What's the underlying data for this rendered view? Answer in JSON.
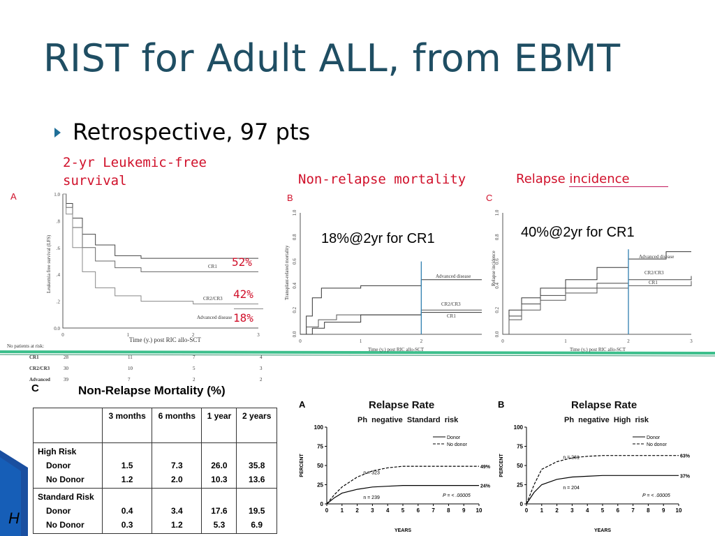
{
  "slide": {
    "title": "RIST for Adult ALL, from EBMT",
    "bullet": "Retrospective, 97 pts",
    "green_band_color": "#3dbf8c",
    "accent_blue": "#1f4e63",
    "label_red": "#d0102a"
  },
  "panel_lfs": {
    "header_line1": "2-yr Leukemic-free",
    "header_line2": "survival",
    "letter": "A",
    "ylabel": "Leukemia free survival (LFS)",
    "xlabel": "Time (y.) post RIC allo-SCT",
    "pct_cr1": "52%",
    "pct_cr2": "42%",
    "pct_adv": "18%",
    "series_labels": [
      "CR1",
      "CR2/CR3",
      "Advanced disease"
    ],
    "risk_header": "No patients at risk:",
    "risk_rows": [
      {
        "label": "CR1",
        "values": [
          "28",
          "11",
          "7",
          "4"
        ]
      },
      {
        "label": "CR2/CR3",
        "values": [
          "30",
          "10",
          "5",
          "3"
        ]
      },
      {
        "label": "Advanced",
        "values": [
          "39",
          "7",
          "2",
          "2"
        ]
      }
    ]
  },
  "panel_nrm": {
    "header": "Non-relapse mortality",
    "letter": "B",
    "annotation": "18%@2yr for CR1",
    "ylabel": "Transplant-related mortality",
    "xlabel": "Time (y.) post RIC allo-SCT",
    "series_labels": [
      "Advanced disease",
      "CR2/CR3",
      "CR1"
    ]
  },
  "panel_relapse": {
    "header_a": "Relapse",
    "header_b": "incidence",
    "letter": "C",
    "annotation": "40%@2yr for CR1",
    "ylabel": "Relapse incidence",
    "xlabel": "Time (y.) post RIC allo-SCT",
    "series_labels": [
      "Advanced disease",
      "CR2/CR3",
      "CR1"
    ]
  },
  "nrm_table": {
    "letter": "C",
    "title": "Non-Relapse Mortality (%)",
    "columns": [
      "3 months",
      "6 months",
      "1 year",
      "2 years"
    ],
    "groups": [
      {
        "name": "High Risk",
        "rows": [
          {
            "label": "Donor",
            "values": [
              "1.5",
              "7.3",
              "26.0",
              "35.8"
            ]
          },
          {
            "label": "No Donor",
            "values": [
              "1.2",
              "2.0",
              "10.3",
              "13.6"
            ]
          }
        ]
      },
      {
        "name": "Standard Risk",
        "rows": [
          {
            "label": "Donor",
            "values": [
              "0.4",
              "3.4",
              "17.6",
              "19.5"
            ]
          },
          {
            "label": "No Donor",
            "values": [
              "0.3",
              "1.2",
              "5.3",
              "6.9"
            ]
          }
        ]
      }
    ]
  },
  "relapse_a": {
    "letter": "A",
    "title": "Relapse Rate",
    "subtitle": "Ph  negative  Standard  risk",
    "legend_donor": "Donor",
    "legend_nodonor": "No donor",
    "ylabel": "PERCENT",
    "xlabel": "YEARS",
    "n_nodonor": "n = 323",
    "n_donor": "n = 239",
    "end_nodonor": "49%",
    "end_donor": "24%",
    "pvalue": "P = < .00005"
  },
  "relapse_b": {
    "letter": "B",
    "title": "Relapse Rate",
    "subtitle": "Ph  negative  High  risk",
    "legend_donor": "Donor",
    "legend_nodonor": "No donor",
    "ylabel": "PERCENT",
    "xlabel": "YEARS",
    "n_nodonor": "n = 261",
    "n_donor": "n = 204",
    "end_nodonor": "63%",
    "end_donor": "37%",
    "pvalue": "P = < .00005"
  },
  "footer_fragment": "H",
  "chart_data": [
    {
      "type": "line",
      "title": "",
      "xlabel": "Time (y.) post RIC allo-SCT",
      "ylabel": "Leukemia free survival (LFS)",
      "xlim": [
        0,
        3
      ],
      "ylim": [
        0,
        1
      ],
      "x_ticks": [
        "0",
        "1",
        "2",
        "3"
      ],
      "y_ticks": [
        "0.0",
        ".2",
        ".4",
        ".6",
        ".8",
        "1.0"
      ],
      "series": [
        {
          "name": "CR1",
          "x": [
            0,
            0.05,
            0.15,
            0.3,
            0.5,
            0.8,
            1.2,
            2.0,
            3.0
          ],
          "y": [
            1,
            0.93,
            0.82,
            0.7,
            0.62,
            0.54,
            0.52,
            0.52,
            0.52
          ]
        },
        {
          "name": "CR2/CR3",
          "x": [
            0,
            0.05,
            0.15,
            0.3,
            0.5,
            0.8,
            1.2,
            2.0,
            3.0
          ],
          "y": [
            1,
            0.9,
            0.75,
            0.6,
            0.5,
            0.45,
            0.42,
            0.42,
            0.42
          ]
        },
        {
          "name": "Advanced disease",
          "x": [
            0,
            0.05,
            0.15,
            0.3,
            0.5,
            0.8,
            1.2,
            2.0,
            3.0
          ],
          "y": [
            1,
            0.85,
            0.6,
            0.42,
            0.3,
            0.24,
            0.2,
            0.18,
            0.18
          ]
        }
      ]
    },
    {
      "type": "line",
      "title": "",
      "xlabel": "Time (y.) post RIC allo-SCT",
      "ylabel": "Transplant-related mortality",
      "xlim": [
        0,
        3
      ],
      "ylim": [
        0,
        1
      ],
      "x_ticks": [
        "0",
        "1",
        "2"
      ],
      "y_ticks": [
        "0.0",
        "0.2",
        "0.4",
        "0.6",
        "0.8",
        "1.0"
      ],
      "series": [
        {
          "name": "Advanced disease",
          "x": [
            0,
            0.1,
            0.2,
            0.35,
            1.0,
            1.9,
            2.0,
            3.0
          ],
          "y": [
            0,
            0.15,
            0.3,
            0.38,
            0.4,
            0.4,
            0.45,
            0.45
          ]
        },
        {
          "name": "CR2/CR3",
          "x": [
            0,
            0.1,
            0.3,
            0.6,
            2.0,
            3.0
          ],
          "y": [
            0,
            0.06,
            0.12,
            0.16,
            0.2,
            0.2
          ]
        },
        {
          "name": "CR1",
          "x": [
            0,
            0.2,
            0.4,
            1.0,
            2.0,
            3.0
          ],
          "y": [
            0,
            0.05,
            0.1,
            0.16,
            0.18,
            0.18
          ]
        }
      ]
    },
    {
      "type": "line",
      "title": "",
      "xlabel": "Time (y.) post RIC allo-SCT",
      "ylabel": "Relapse incidence",
      "xlim": [
        0,
        3
      ],
      "ylim": [
        0,
        1
      ],
      "x_ticks": [
        "0",
        "1",
        "2",
        "3"
      ],
      "y_ticks": [
        "0.0",
        "0.2",
        "0.4",
        "0.6",
        "0.8",
        "1.0"
      ],
      "series": [
        {
          "name": "Advanced disease",
          "x": [
            0,
            0.1,
            0.3,
            0.6,
            1.0,
            1.5,
            2.0,
            2.6,
            3.0
          ],
          "y": [
            0,
            0.2,
            0.3,
            0.38,
            0.45,
            0.55,
            0.62,
            0.68,
            0.68
          ]
        },
        {
          "name": "CR2/CR3",
          "x": [
            0,
            0.1,
            0.3,
            0.6,
            1.0,
            1.5,
            2.0,
            3.0
          ],
          "y": [
            0,
            0.15,
            0.25,
            0.32,
            0.38,
            0.42,
            0.45,
            0.48
          ]
        },
        {
          "name": "CR1",
          "x": [
            0,
            0.1,
            0.3,
            0.6,
            1.0,
            1.5,
            2.0,
            3.0
          ],
          "y": [
            0,
            0.12,
            0.2,
            0.28,
            0.34,
            0.38,
            0.4,
            0.44
          ]
        }
      ]
    },
    {
      "type": "line",
      "title": "Relapse Rate",
      "xlabel": "YEARS",
      "ylabel": "PERCENT",
      "xlim": [
        0,
        10
      ],
      "ylim": [
        0,
        100
      ],
      "x_ticks": [
        "0",
        "1",
        "2",
        "3",
        "4",
        "5",
        "6",
        "7",
        "8",
        "9",
        "10"
      ],
      "y_ticks": [
        "0",
        "25",
        "50",
        "75",
        "100"
      ],
      "series": [
        {
          "name": "Donor",
          "x": [
            0,
            0.5,
            1,
            2,
            3,
            4,
            5,
            6,
            10
          ],
          "y": [
            0,
            8,
            14,
            19,
            22,
            23,
            24,
            24,
            24
          ]
        },
        {
          "name": "No donor",
          "x": [
            0,
            0.5,
            1,
            2,
            3,
            4,
            5,
            6,
            10
          ],
          "y": [
            0,
            12,
            22,
            35,
            43,
            47,
            49,
            49,
            49
          ]
        }
      ]
    },
    {
      "type": "line",
      "title": "Relapse Rate",
      "xlabel": "YEARS",
      "ylabel": "PERCENT",
      "xlim": [
        0,
        10
      ],
      "ylim": [
        0,
        100
      ],
      "x_ticks": [
        "0",
        "1",
        "2",
        "3",
        "4",
        "5",
        "6",
        "7",
        "8",
        "9",
        "10"
      ],
      "y_ticks": [
        "0",
        "25",
        "50",
        "75",
        "100"
      ],
      "series": [
        {
          "name": "Donor",
          "x": [
            0,
            0.5,
            1,
            2,
            3,
            4,
            5,
            10
          ],
          "y": [
            0,
            15,
            25,
            32,
            35,
            36,
            37,
            37
          ]
        },
        {
          "name": "No donor",
          "x": [
            0,
            0.5,
            1,
            2,
            3,
            4,
            5,
            10
          ],
          "y": [
            0,
            25,
            45,
            55,
            60,
            62,
            63,
            63
          ]
        }
      ]
    }
  ]
}
